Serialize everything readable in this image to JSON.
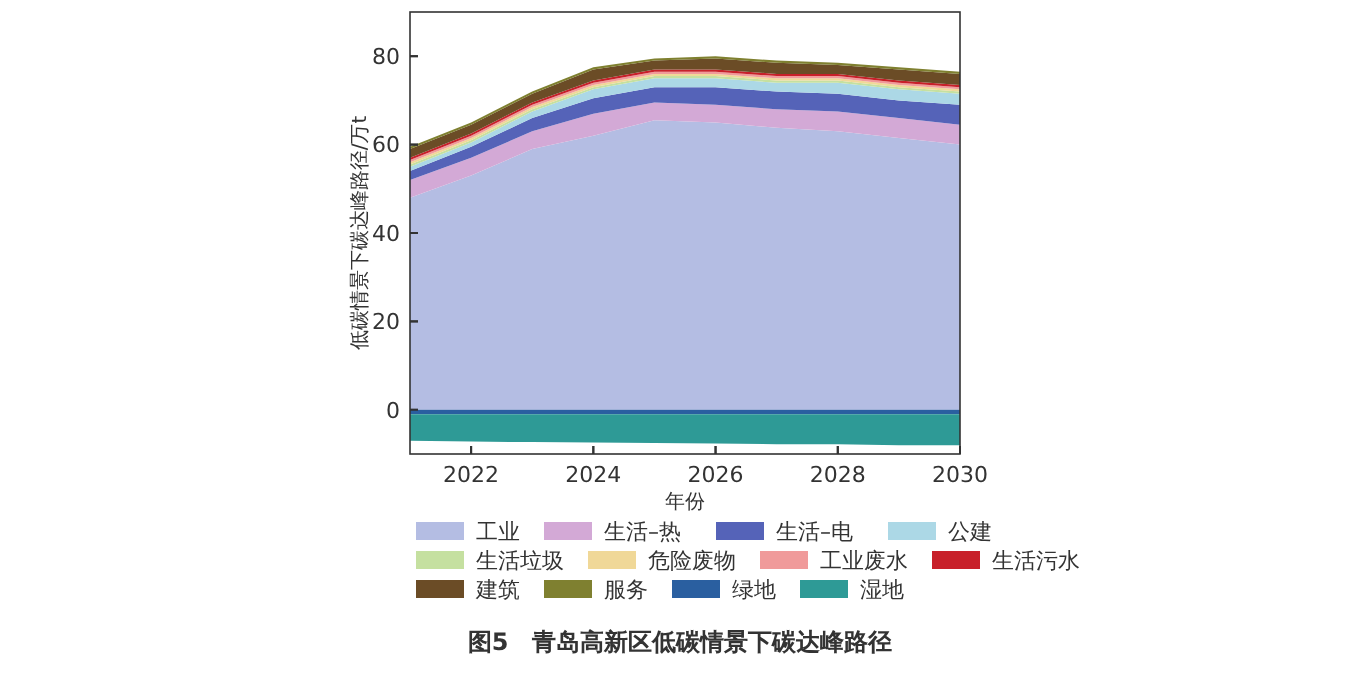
{
  "chart_data": [
    {
      "type": "area",
      "stacked": true,
      "title": "图5　青岛高新区低碳情景下碳达峰路径",
      "xlabel": "年份",
      "ylabel": "低碳情景下碳达峰路径/万t",
      "x": [
        2021,
        2022,
        2023,
        2024,
        2025,
        2026,
        2027,
        2028,
        2029,
        2030
      ],
      "xlim": [
        2021,
        2030
      ],
      "xticks": [
        2022,
        2024,
        2026,
        2028,
        2030
      ],
      "ylim": [
        -10,
        90
      ],
      "yticks": [
        0,
        20,
        40,
        60,
        80
      ],
      "grid": false,
      "legend": "bottom",
      "series": [
        {
          "name": "工业",
          "color": "#b4bde3",
          "values": [
            48,
            53,
            59,
            62,
            65.5,
            65,
            63.8,
            63,
            61.5,
            60
          ]
        },
        {
          "name": "生活–热",
          "color": "#d3a9d6",
          "values": [
            4,
            4,
            4,
            5,
            4,
            4,
            4.2,
            4.5,
            4.5,
            4.5
          ]
        },
        {
          "name": "生活–电",
          "color": "#5563b8",
          "values": [
            2,
            2.5,
            3,
            3.5,
            3.5,
            4,
            4,
            4,
            4,
            4.5
          ]
        },
        {
          "name": "公建",
          "color": "#acd8e6",
          "values": [
            1,
            1,
            1.5,
            2,
            2,
            2,
            2,
            2.5,
            2.5,
            2.5
          ]
        },
        {
          "name": "生活垃圾",
          "color": "#c5e0a0",
          "values": [
            0.5,
            0.5,
            0.5,
            0.5,
            0.5,
            0.5,
            0.5,
            0.5,
            0.5,
            0.5
          ]
        },
        {
          "name": "危险废物",
          "color": "#f0d898",
          "values": [
            0.5,
            0.5,
            0.5,
            0.5,
            0.5,
            0.5,
            0.5,
            0.5,
            0.5,
            0.5
          ]
        },
        {
          "name": "工业废水",
          "color": "#f09a9a",
          "values": [
            0.5,
            0.5,
            0.5,
            0.5,
            0.5,
            0.5,
            0.5,
            0.5,
            0.5,
            0.5
          ]
        },
        {
          "name": "生活污水",
          "color": "#c8202a",
          "values": [
            0.5,
            0.5,
            0.5,
            0.5,
            0.5,
            0.5,
            0.5,
            0.5,
            0.5,
            0.5
          ]
        },
        {
          "name": "建筑",
          "color": "#6b4c26",
          "values": [
            2,
            2,
            2,
            2.5,
            2,
            2.5,
            2.5,
            2,
            2.5,
            2.5
          ]
        },
        {
          "name": "服务",
          "color": "#7f8030",
          "values": [
            0.5,
            0.5,
            0.5,
            0.5,
            0.5,
            0.5,
            0.5,
            0.5,
            0.5,
            0.5
          ]
        }
      ]
    },
    {
      "type": "area",
      "stacked": true,
      "x": [
        2021,
        2022,
        2023,
        2024,
        2025,
        2026,
        2027,
        2028,
        2029,
        2030
      ],
      "xlim": [
        2021,
        2030
      ],
      "xticks": [
        2022,
        2024,
        2026,
        2028,
        2030
      ],
      "ylim": [
        -10,
        90
      ],
      "yticks": [
        0,
        20,
        40,
        60,
        80
      ],
      "tick_labels": false,
      "legend": "bottom",
      "series": [
        {
          "name": "绿地",
          "color": "#2a5fa0",
          "values": [
            -1,
            -1,
            -1,
            -1,
            -1,
            -1,
            -1,
            -1,
            -1,
            -1
          ]
        },
        {
          "name": "湿地",
          "color": "#2e9a96",
          "values": [
            -6,
            -6.2,
            -6.3,
            -6.4,
            -6.5,
            -6.6,
            -6.8,
            -6.8,
            -7,
            -7
          ]
        }
      ]
    }
  ]
}
